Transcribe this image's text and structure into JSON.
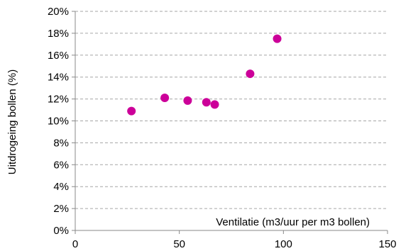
{
  "chart_data": {
    "type": "scatter",
    "xlabel": "Ventilatie (m3/uur per m3 bollen)",
    "ylabel": "Uitdrogeing bollen (%)",
    "xlim": [
      0,
      150
    ],
    "ylim": [
      0,
      20
    ],
    "x_ticks": [
      0,
      50,
      100,
      150
    ],
    "x_tick_labels": [
      "0",
      "50",
      "100",
      "150"
    ],
    "y_ticks": [
      0,
      2,
      4,
      6,
      8,
      10,
      12,
      14,
      16,
      18,
      20
    ],
    "y_tick_labels": [
      "0%",
      "2%",
      "4%",
      "6%",
      "8%",
      "10%",
      "12%",
      "14%",
      "16%",
      "18%",
      "20%"
    ],
    "grid": "horizontal-dashed",
    "legend": "none",
    "marker_color": "#cc0099",
    "points": [
      {
        "x": 27,
        "y": 10.9
      },
      {
        "x": 43,
        "y": 12.1
      },
      {
        "x": 54,
        "y": 11.85
      },
      {
        "x": 63,
        "y": 11.7
      },
      {
        "x": 67,
        "y": 11.5
      },
      {
        "x": 84,
        "y": 14.3
      },
      {
        "x": 97,
        "y": 17.5
      }
    ]
  }
}
